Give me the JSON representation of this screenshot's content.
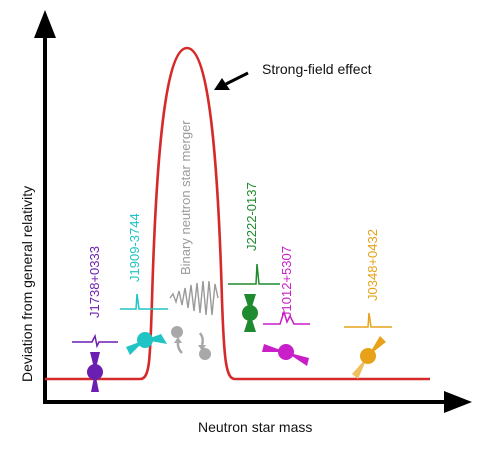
{
  "axes": {
    "x_label": "Neutron star mass",
    "y_label": "Deviation from general relativity"
  },
  "annotations": {
    "strong_field": "Strong-field effect",
    "merger": "Binary neutron star merger"
  },
  "pulsars": [
    {
      "name": "J1738+0333",
      "color": "#6b1fb1"
    },
    {
      "name": "J1909-3744",
      "color": "#20c4c4"
    },
    {
      "name": "J2222-0137",
      "color": "#1f8a2e"
    },
    {
      "name": "J1012+5307",
      "color": "#c81fc8"
    },
    {
      "name": "J0348+0432",
      "color": "#e7a21a"
    }
  ],
  "colors": {
    "curve": "#d62a2a",
    "axes": "#000000",
    "merger": "#9a9a9a"
  },
  "icons": [
    "arrow-icon",
    "waveform-icon",
    "orbit-icon"
  ]
}
